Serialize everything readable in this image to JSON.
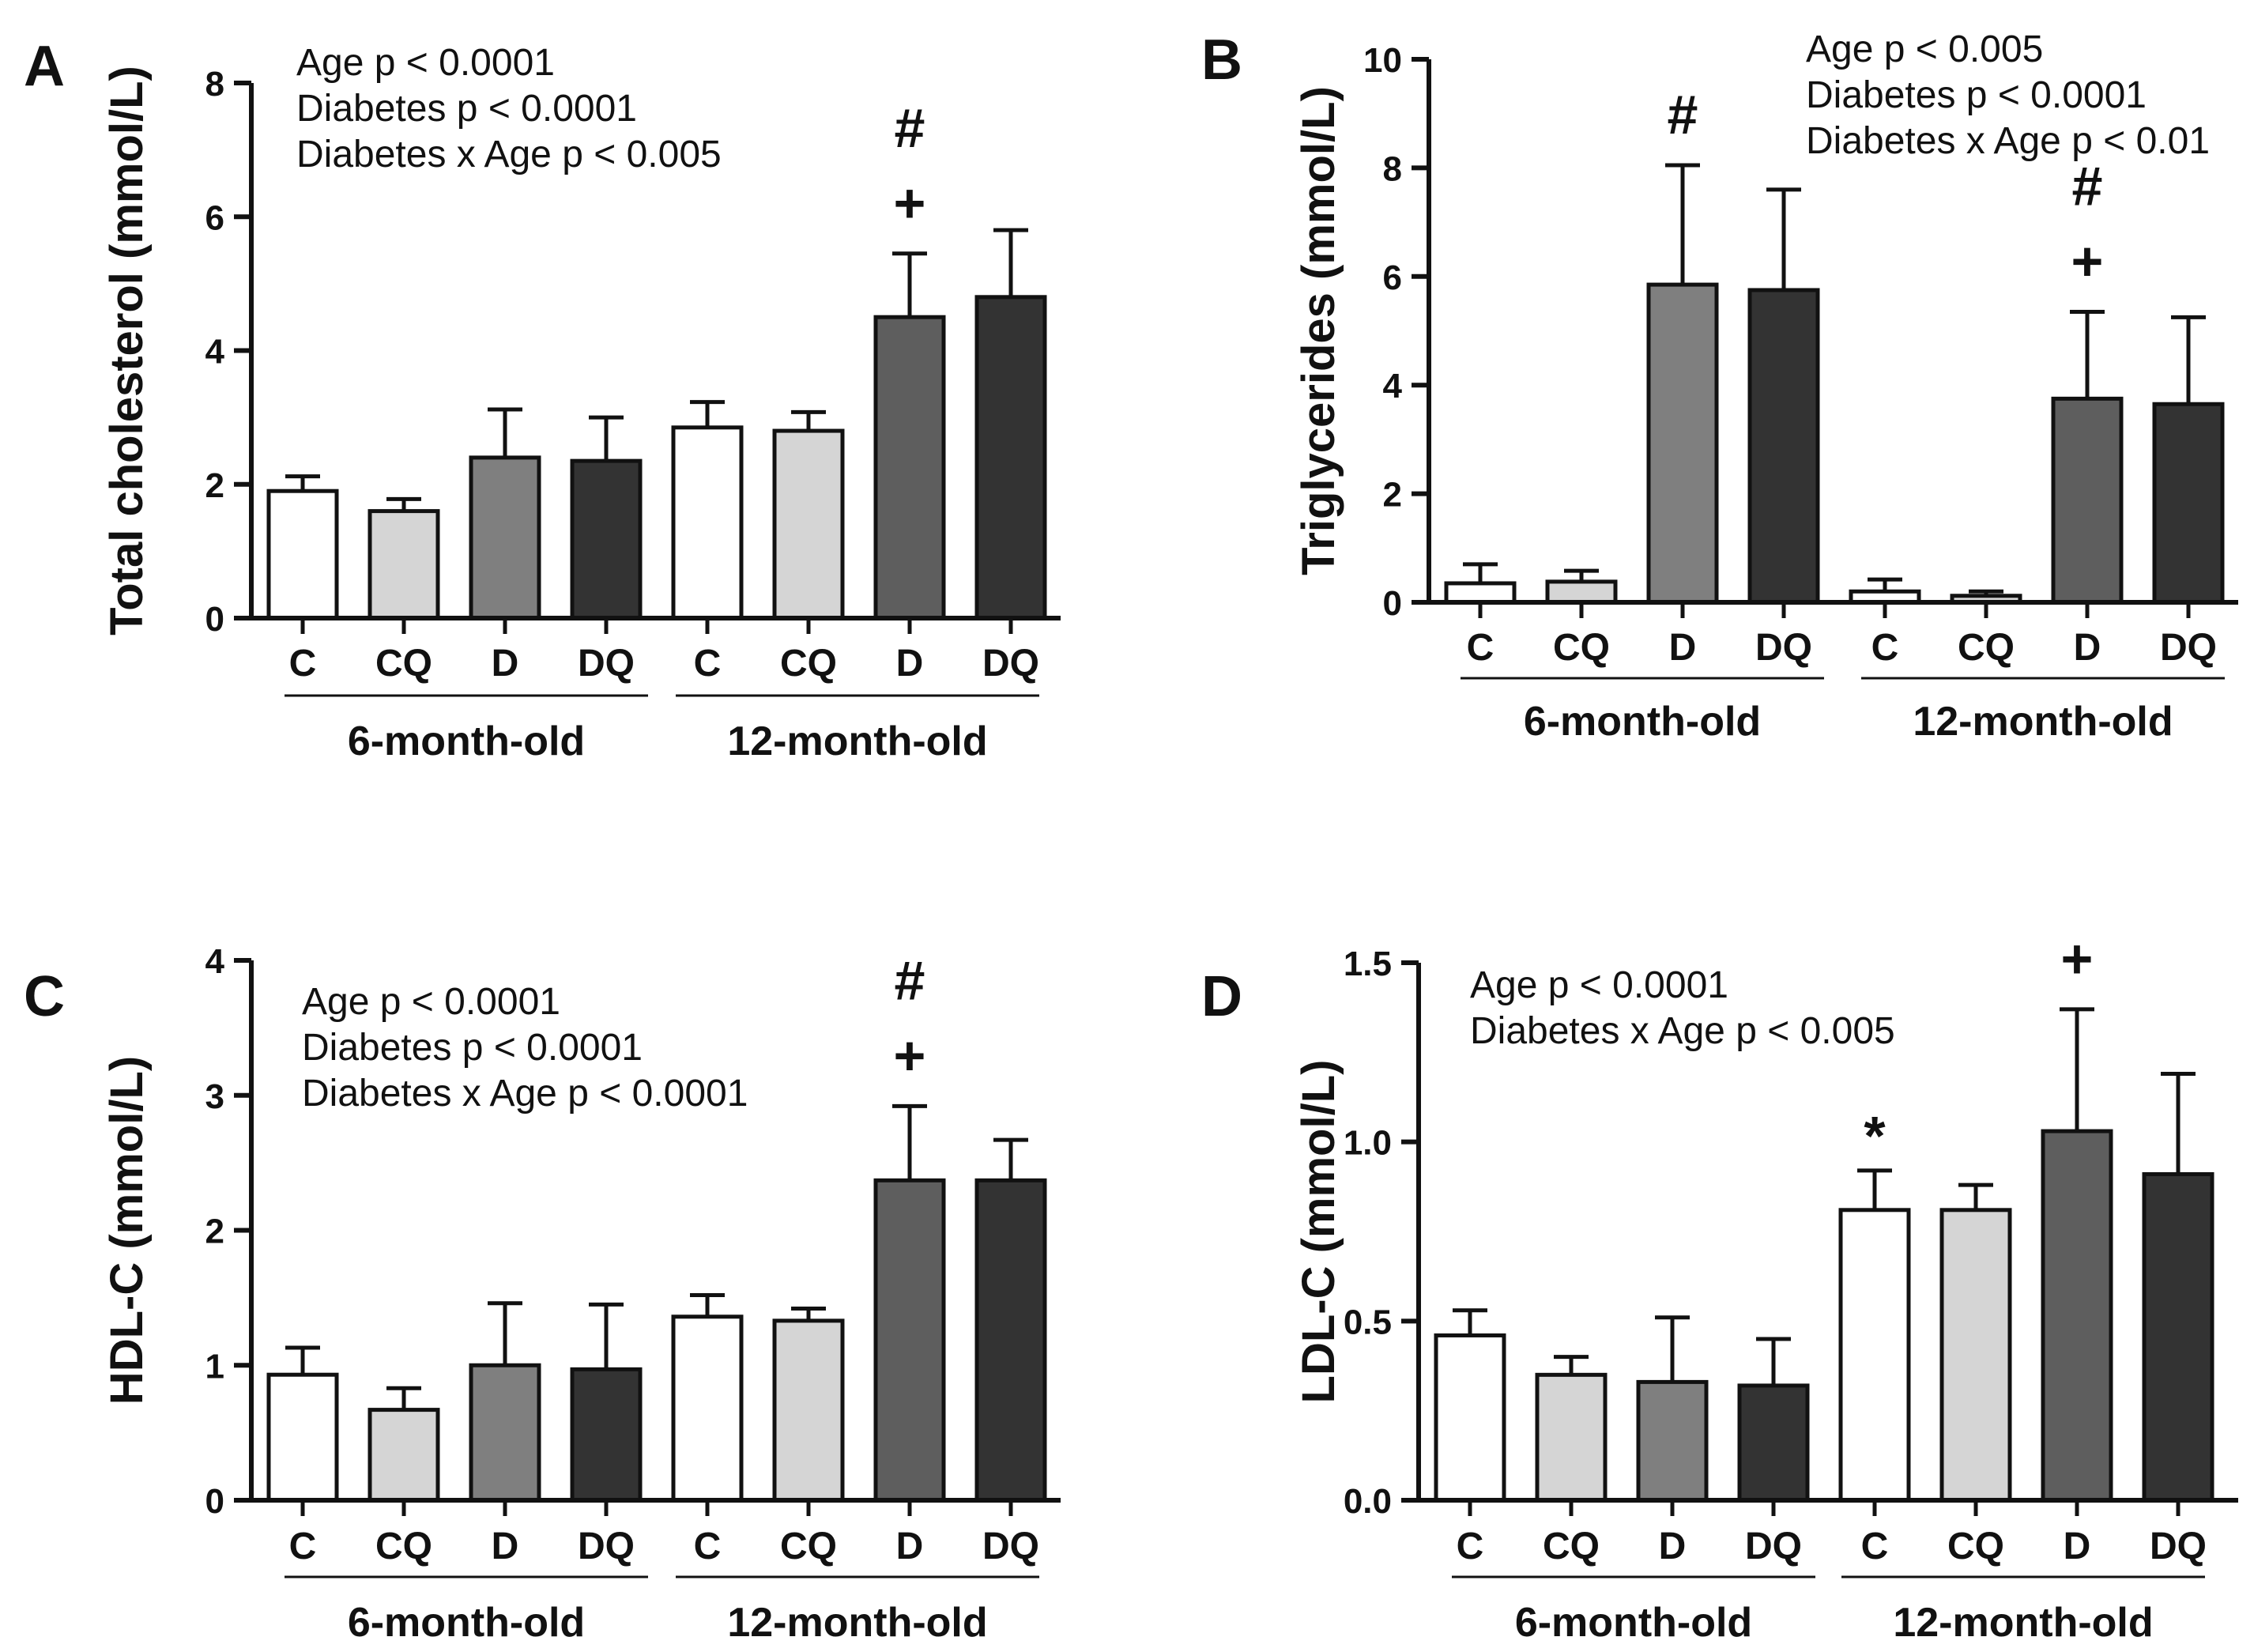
{
  "chart_data": [
    {
      "type": "bar",
      "panel": "A",
      "ylabel": "Total cholesterol (mmol/L)",
      "ylim": [
        0,
        8
      ],
      "yticks": [
        0,
        2,
        4,
        6,
        8
      ],
      "ytick_labels": [
        "0",
        "2",
        "4",
        "6",
        "8"
      ],
      "categories": [
        "C",
        "CQ",
        "D",
        "DQ",
        "C",
        "CQ",
        "D",
        "DQ"
      ],
      "groups": [
        {
          "label": "6-month-old"
        },
        {
          "label": "12-month-old"
        }
      ],
      "values": [
        1.9,
        1.6,
        2.4,
        2.35,
        2.85,
        2.8,
        4.5,
        4.8
      ],
      "errors": [
        0.22,
        0.18,
        0.72,
        0.65,
        0.38,
        0.28,
        0.95,
        1.0
      ],
      "bar_colors": [
        "#ffffff",
        "#d5d5d5",
        "#7f7f7f",
        "#333333",
        "#ffffff",
        "#d5d5d5",
        "#5e5e5e",
        "#333333"
      ],
      "annotations": [
        {
          "bar": 6,
          "lines": [
            "+",
            "#"
          ]
        }
      ],
      "stats_text": [
        "Age p < 0.0001",
        "Diabetes p < 0.0001",
        "Diabetes x Age p < 0.005"
      ]
    },
    {
      "type": "bar",
      "panel": "B",
      "ylabel": "Triglycerides (mmol/L)",
      "ylim": [
        0,
        10
      ],
      "yticks": [
        0,
        2,
        4,
        6,
        8,
        10
      ],
      "ytick_labels": [
        "0",
        "2",
        "4",
        "6",
        "8",
        "10"
      ],
      "categories": [
        "C",
        "CQ",
        "D",
        "DQ",
        "C",
        "CQ",
        "D",
        "DQ"
      ],
      "groups": [
        {
          "label": "6-month-old"
        },
        {
          "label": "12-month-old"
        }
      ],
      "values": [
        0.35,
        0.38,
        5.85,
        5.75,
        0.2,
        0.12,
        3.75,
        3.65
      ],
      "errors": [
        0.35,
        0.2,
        2.2,
        1.85,
        0.22,
        0.08,
        1.6,
        1.6
      ],
      "bar_colors": [
        "#ffffff",
        "#d5d5d5",
        "#7f7f7f",
        "#333333",
        "#ffffff",
        "#d5d5d5",
        "#5e5e5e",
        "#333333"
      ],
      "annotations": [
        {
          "bar": 2,
          "lines": [
            "#"
          ]
        },
        {
          "bar": 6,
          "lines": [
            "+",
            "#"
          ]
        }
      ],
      "stats_text": [
        "Age p < 0.005",
        "Diabetes p < 0.0001",
        "Diabetes x Age p < 0.01"
      ]
    },
    {
      "type": "bar",
      "panel": "C",
      "ylabel": "HDL-C (mmol/L)",
      "ylim": [
        0,
        4
      ],
      "yticks": [
        0,
        1,
        2,
        3,
        4
      ],
      "ytick_labels": [
        "0",
        "1",
        "2",
        "3",
        "4"
      ],
      "categories": [
        "C",
        "CQ",
        "D",
        "DQ",
        "C",
        "CQ",
        "D",
        "DQ"
      ],
      "groups": [
        {
          "label": "6-month-old"
        },
        {
          "label": "12-month-old"
        }
      ],
      "values": [
        0.93,
        0.67,
        1.0,
        0.97,
        1.36,
        1.33,
        2.37,
        2.37
      ],
      "errors": [
        0.2,
        0.16,
        0.46,
        0.48,
        0.16,
        0.09,
        0.55,
        0.3
      ],
      "bar_colors": [
        "#ffffff",
        "#d5d5d5",
        "#7f7f7f",
        "#333333",
        "#ffffff",
        "#d5d5d5",
        "#5e5e5e",
        "#333333"
      ],
      "annotations": [
        {
          "bar": 6,
          "lines": [
            "+",
            "#"
          ]
        }
      ],
      "stats_text": [
        "Age p < 0.0001",
        "Diabetes p < 0.0001",
        "Diabetes x Age p < 0.0001"
      ]
    },
    {
      "type": "bar",
      "panel": "D",
      "ylabel": "LDL-C (mmol/L)",
      "ylim": [
        0,
        1.5
      ],
      "yticks": [
        0,
        0.5,
        1.0,
        1.5
      ],
      "ytick_labels": [
        "0.0",
        "0.5",
        "1.0",
        "1.5"
      ],
      "categories": [
        "C",
        "CQ",
        "D",
        "DQ",
        "C",
        "CQ",
        "D",
        "DQ"
      ],
      "groups": [
        {
          "label": "6-month-old"
        },
        {
          "label": "12-month-old"
        }
      ],
      "values": [
        0.46,
        0.35,
        0.33,
        0.32,
        0.81,
        0.81,
        1.03,
        0.91
      ],
      "errors": [
        0.07,
        0.05,
        0.18,
        0.13,
        0.11,
        0.07,
        0.34,
        0.28
      ],
      "bar_colors": [
        "#ffffff",
        "#d5d5d5",
        "#7f7f7f",
        "#333333",
        "#ffffff",
        "#d5d5d5",
        "#5e5e5e",
        "#333333"
      ],
      "annotations": [
        {
          "bar": 4,
          "lines": [
            "*"
          ]
        },
        {
          "bar": 6,
          "lines": [
            "+"
          ]
        }
      ],
      "stats_text": [
        "Age p < 0.0001",
        "Diabetes x Age p < 0.005"
      ]
    }
  ]
}
